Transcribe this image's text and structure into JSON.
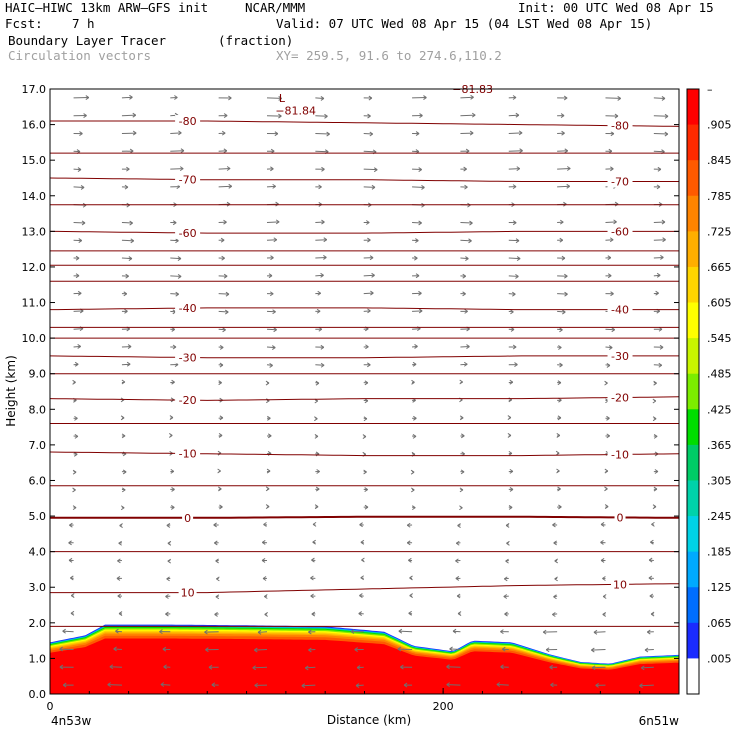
{
  "header": {
    "model": "HAIC–HIWC 13km ARW–GFS init",
    "center": "NCAR/MMM",
    "init": "Init: 00 UTC Wed 08 Apr 15",
    "fcst_label": "Fcst:",
    "fcst_value": "7 h",
    "valid": "Valid: 07 UTC Wed 08 Apr 15 (04 LST Wed 08 Apr 15)",
    "field": "Boundary Layer Tracer",
    "field_units": "(fraction)",
    "vectors": "Circulation vectors",
    "xy": "XY= 259.5, 91.6 to 274.6,110.2"
  },
  "chart_data": {
    "type": "contour",
    "xlabel": "Distance (km)",
    "ylabel": "Height (km)",
    "xlim": [
      0,
      320
    ],
    "ylim": [
      0,
      17
    ],
    "x_ticks": [
      "0",
      "200"
    ],
    "x_ends": [
      "4n53w",
      "6n51w"
    ],
    "y_ticks": [
      "0.0",
      "1.0",
      "2.0",
      "3.0",
      "4.0",
      "5.0",
      "6.0",
      "7.0",
      "8.0",
      "9.0",
      "10.0",
      "11.0",
      "12.0",
      "13.0",
      "14.0",
      "15.0",
      "16.0",
      "17.0"
    ],
    "tracer_top_km": {
      "x": [
        0,
        18,
        28,
        60,
        100,
        140,
        170,
        185,
        205,
        215,
        235,
        255,
        270,
        285,
        300,
        320
      ],
      "y": [
        1.45,
        1.65,
        1.95,
        1.95,
        1.93,
        1.9,
        1.75,
        1.35,
        1.2,
        1.5,
        1.45,
        1.1,
        0.9,
        0.85,
        1.05,
        1.1
      ]
    },
    "temperature_contours_C": [
      {
        "value": -80,
        "height_km": [
          16.1,
          16.1,
          16.05,
          16.0,
          15.95
        ]
      },
      {
        "value": -70,
        "height_km": [
          14.5,
          14.45,
          14.45,
          14.4,
          14.4
        ]
      },
      {
        "value": -60,
        "height_km": [
          13.0,
          12.95,
          12.95,
          13.0,
          13.0
        ]
      },
      {
        "value": -40,
        "height_km": [
          10.8,
          10.85,
          10.85,
          10.8,
          10.8
        ]
      },
      {
        "value": -30,
        "height_km": [
          9.5,
          9.45,
          9.45,
          9.5,
          9.5
        ]
      },
      {
        "value": -20,
        "height_km": [
          8.3,
          8.25,
          8.3,
          8.3,
          8.35
        ]
      },
      {
        "value": -10,
        "height_km": [
          6.8,
          6.75,
          6.7,
          6.7,
          6.75
        ]
      },
      {
        "value": 0,
        "height_km": [
          4.95,
          4.95,
          4.98,
          4.98,
          4.95
        ]
      },
      {
        "value": 10,
        "height_km": [
          2.85,
          2.85,
          2.95,
          3.05,
          3.1
        ]
      }
    ],
    "unlabeled_contour_heights_km": [
      15.2,
      13.75,
      12.45,
      12.05,
      11.6,
      10.3,
      10.0,
      9.0,
      7.6,
      5.85,
      4.0,
      1.9
    ],
    "contour_x_km": [
      0,
      80,
      160,
      240,
      320
    ],
    "annotations": [
      {
        "text": "L",
        "x_km": 118,
        "y_km": 16.75
      },
      {
        "text": "−81.84",
        "x_km": 125,
        "y_km": 16.4
      },
      {
        "text": "−81.83",
        "x_km": 215,
        "y_km": 17.0
      }
    ],
    "colorbar": {
      "labels": [
        "–",
        ".905",
        ".845",
        ".785",
        ".725",
        ".665",
        ".605",
        ".545",
        ".485",
        ".425",
        ".365",
        ".305",
        ".245",
        ".185",
        ".125",
        ".065",
        ".005"
      ],
      "colors": [
        "#ff0000",
        "#ff2a00",
        "#ff5a00",
        "#ff8400",
        "#ffae00",
        "#ffd500",
        "#ffff00",
        "#c8f500",
        "#7ced00",
        "#00dd00",
        "#00cc66",
        "#00d2aa",
        "#00d2e6",
        "#00aaff",
        "#006eff",
        "#1a2bff",
        "#ffffff"
      ]
    },
    "contour_color": "#800000",
    "vector_color": "#707070"
  }
}
